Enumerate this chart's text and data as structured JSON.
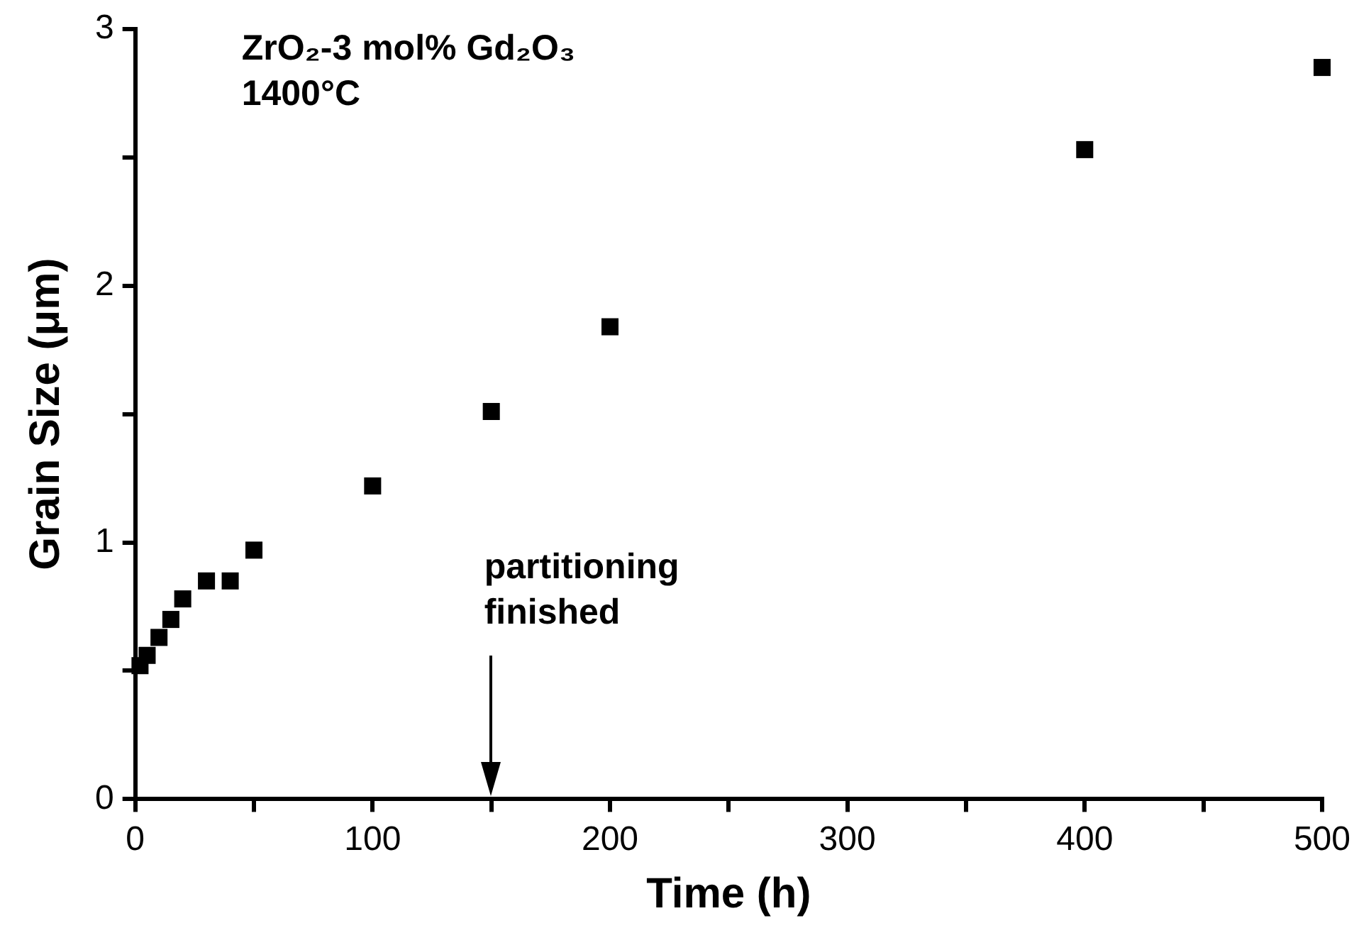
{
  "chart_data": {
    "type": "scatter",
    "title": "ZrO₂-3 mol% Gd₂O₃",
    "subtitle": "1400°C",
    "xlabel": "Time (h)",
    "ylabel": "Grain Size (μm)",
    "x": [
      2,
      5,
      10,
      15,
      20,
      30,
      40,
      50,
      100,
      150,
      200,
      400,
      500
    ],
    "series": [
      {
        "color": "#000000",
        "values": [
          0.52,
          0.56,
          0.63,
          0.7,
          0.78,
          0.85,
          0.85,
          0.97,
          1.22,
          1.51,
          1.84,
          2.53,
          2.85
        ]
      }
    ],
    "xlim": [
      0,
      500
    ],
    "xticks": [
      0,
      {
        "value": 50,
        "label": null
      },
      100,
      {
        "value": 150,
        "label": null
      },
      200,
      {
        "value": 250,
        "label": null
      },
      300,
      {
        "value": 350,
        "label": null
      },
      400,
      {
        "value": 450,
        "label": null
      },
      500
    ],
    "ylim": [
      0,
      3
    ],
    "yticks": [
      0,
      {
        "value": 0.5,
        "label": null
      },
      1,
      {
        "value": 1.5,
        "label": null
      },
      2,
      {
        "value": 2.5,
        "label": null
      },
      3
    ],
    "ref_lines": [
      {
        "axis": "x",
        "value": 150,
        "label": "partitioning\nfinished"
      }
    ],
    "marker": "square",
    "grid": false,
    "legend": false
  }
}
